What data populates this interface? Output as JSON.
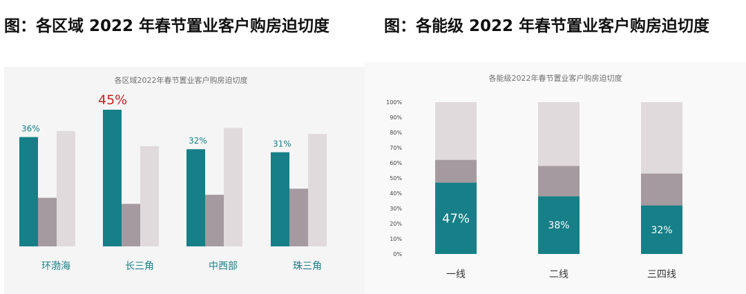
{
  "headings": {
    "left": "图：各区域 2022 年春节置业客户购房迫切度",
    "right": "图：各能级 2022 年春节置业客户购房迫切度"
  },
  "colors": {
    "teal": "#167f87",
    "mauve": "#a59a9f",
    "light": "#e0dadc",
    "highlight": "#cc1f1f"
  },
  "chart_data": [
    {
      "type": "bar",
      "title": "各区域2022年春节置业客户购房迫切度",
      "categories": [
        "环渤海",
        "长三角",
        "中西部",
        "珠三角"
      ],
      "series": [
        {
          "values": [
            36,
            45,
            32,
            31
          ]
        },
        {
          "values": [
            16,
            14,
            17,
            19
          ]
        },
        {
          "values": [
            38,
            33,
            39,
            37
          ]
        }
      ],
      "data_labels": [
        "36%",
        "45%",
        "32%",
        "31%"
      ],
      "highlight_index": 1,
      "ylim": [
        0,
        48
      ],
      "grid": false,
      "legend": "none"
    },
    {
      "type": "bar",
      "stacked": true,
      "title": "各能级2022年春节置业客户购房迫切度",
      "categories": [
        "一线",
        "二线",
        "三四线"
      ],
      "series": [
        {
          "values": [
            47,
            38,
            32
          ]
        },
        {
          "values": [
            15,
            20,
            21
          ]
        },
        {
          "values": [
            38,
            42,
            47
          ]
        }
      ],
      "data_labels": [
        "47%",
        "38%",
        "32%"
      ],
      "yticks": [
        "0%",
        "10%",
        "20%",
        "30%",
        "40%",
        "50%",
        "60%",
        "70%",
        "80%",
        "90%",
        "100%"
      ],
      "ylim": [
        0,
        100
      ],
      "grid": false,
      "legend": "none"
    }
  ]
}
